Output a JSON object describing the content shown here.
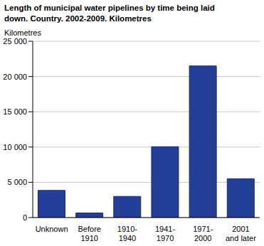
{
  "chart_data": {
    "type": "bar",
    "title": "Length of municipal water pipelines by time being laid down. Country. 2002-2009. Kilometres",
    "y_label": "Kilometres",
    "categories": [
      "Unknown",
      "Before 1910",
      "1910-1940",
      "1941-1970",
      "1971-2000",
      "2001 and later"
    ],
    "values": [
      3850,
      650,
      3000,
      10050,
      21500,
      5500
    ],
    "color": "#233e96",
    "ylim": [
      0,
      25000
    ],
    "yticks": [
      0,
      {
        "value": 5000,
        "label": "5 000"
      },
      {
        "value": 10000,
        "label": "10 000"
      },
      {
        "value": 15000,
        "label": "15 000"
      },
      {
        "value": 20000,
        "label": "20 000"
      },
      {
        "value": 25000,
        "label": "25 000"
      }
    ],
    "grid": true
  }
}
